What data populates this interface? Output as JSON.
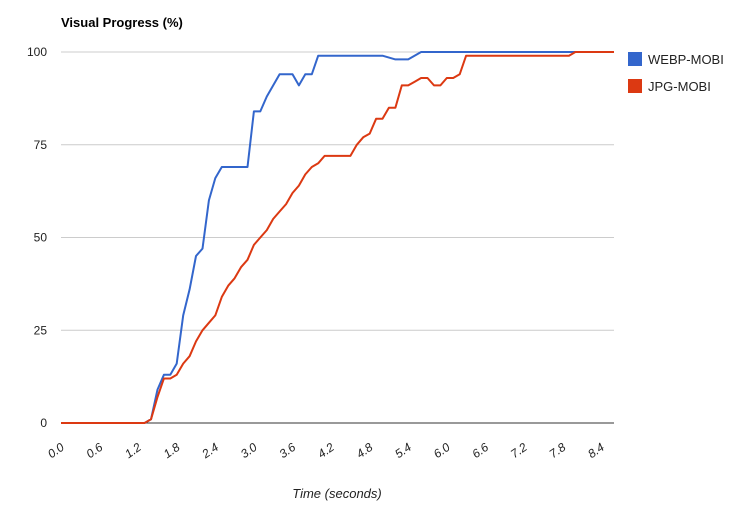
{
  "chart_data": {
    "type": "line",
    "title": "Visual Progress (%)",
    "xlabel": "Time (seconds)",
    "ylabel": "",
    "xlim": [
      0,
      8.6
    ],
    "ylim": [
      0,
      100
    ],
    "y_ticks": [
      "0",
      "25",
      "50",
      "75",
      "100"
    ],
    "x_ticks": [
      "0.0",
      "0.6",
      "1.2",
      "1.8",
      "2.4",
      "3.0",
      "3.6",
      "4.2",
      "4.8",
      "5.4",
      "6.0",
      "6.6",
      "7.2",
      "7.8",
      "8.4"
    ],
    "grid": true,
    "legend_position": "right",
    "series": [
      {
        "name": "WEBP-MOBI",
        "color": "#3366cc",
        "x": [
          0.0,
          1.3,
          1.4,
          1.5,
          1.6,
          1.7,
          1.8,
          1.9,
          2.0,
          2.1,
          2.2,
          2.3,
          2.4,
          2.5,
          2.6,
          2.7,
          2.8,
          2.9,
          3.0,
          3.1,
          3.2,
          3.3,
          3.4,
          3.5,
          3.6,
          3.7,
          3.8,
          3.9,
          4.0,
          4.1,
          4.5,
          5.0,
          5.2,
          5.4,
          5.6,
          6.0,
          8.0,
          8.6
        ],
        "y": [
          0,
          0,
          1,
          9,
          13,
          13,
          16,
          29,
          36,
          45,
          47,
          60,
          66,
          69,
          69,
          69,
          69,
          69,
          84,
          84,
          88,
          91,
          94,
          94,
          94,
          91,
          94,
          94,
          99,
          99,
          99,
          99,
          98,
          98,
          100,
          100,
          100,
          100
        ]
      },
      {
        "name": "JPG-MOBI",
        "color": "#dc3912",
        "x": [
          0.0,
          1.3,
          1.4,
          1.5,
          1.6,
          1.7,
          1.8,
          1.9,
          2.0,
          2.1,
          2.2,
          2.3,
          2.4,
          2.5,
          2.6,
          2.7,
          2.8,
          2.9,
          3.0,
          3.1,
          3.2,
          3.3,
          3.4,
          3.5,
          3.6,
          3.7,
          3.8,
          3.9,
          4.0,
          4.1,
          4.2,
          4.3,
          4.4,
          4.5,
          4.6,
          4.7,
          4.8,
          4.9,
          5.0,
          5.1,
          5.2,
          5.3,
          5.4,
          5.5,
          5.6,
          5.7,
          5.8,
          5.9,
          6.0,
          6.1,
          6.2,
          6.3,
          6.4,
          7.0,
          7.5,
          7.9,
          8.0,
          8.6
        ],
        "y": [
          0,
          0,
          1,
          7,
          12,
          12,
          13,
          16,
          18,
          22,
          25,
          27,
          29,
          34,
          37,
          39,
          42,
          44,
          48,
          50,
          52,
          55,
          57,
          59,
          62,
          64,
          67,
          69,
          70,
          72,
          72,
          72,
          72,
          72,
          75,
          77,
          78,
          82,
          82,
          85,
          85,
          91,
          91,
          92,
          93,
          93,
          91,
          91,
          93,
          93,
          94,
          99,
          99,
          99,
          99,
          99,
          100,
          100
        ]
      }
    ]
  }
}
